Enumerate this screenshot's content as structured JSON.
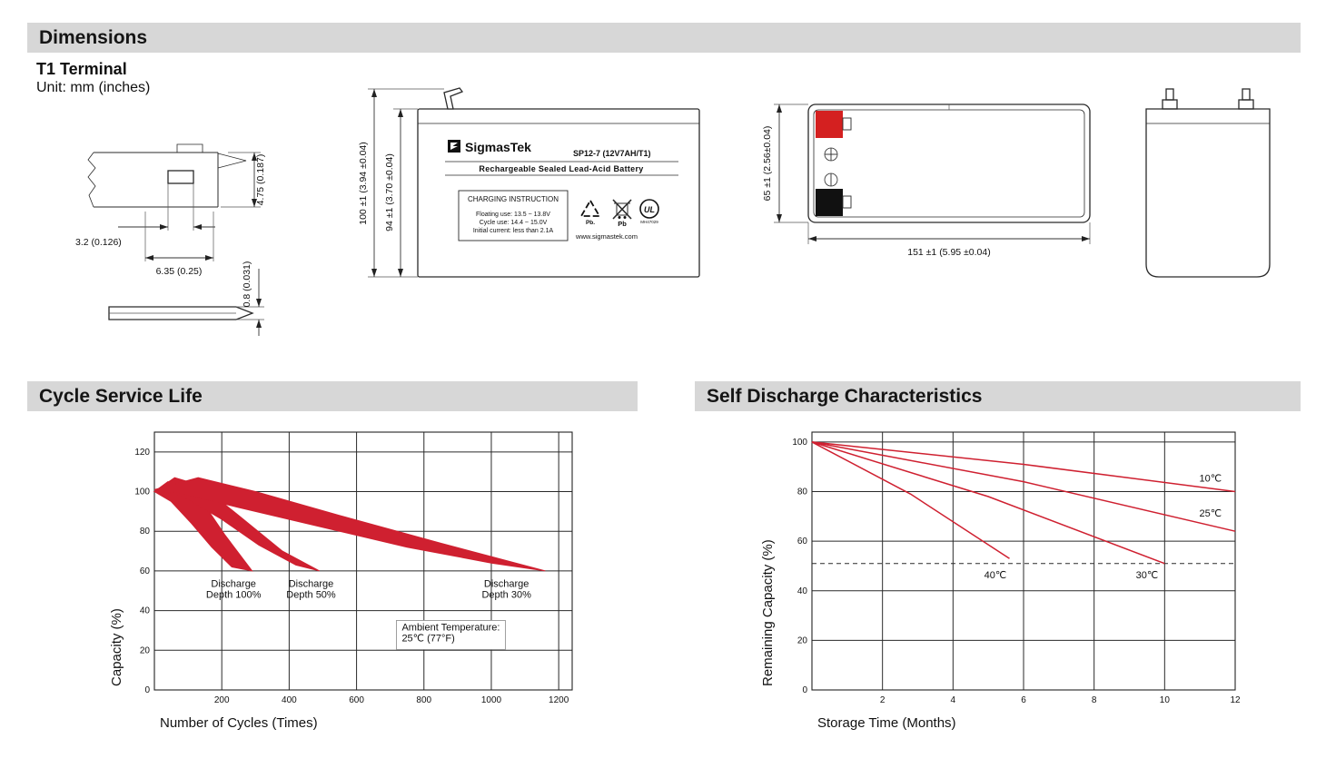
{
  "sections": {
    "dimensions": "Dimensions",
    "cycle_service_life": "Cycle Service Life",
    "self_discharge": "Self Discharge Characteristics"
  },
  "dimensions_section": {
    "terminal_type": "T1 Terminal",
    "unit_note": "Unit: mm (inches)",
    "terminal_detail": {
      "dim_height": "4.75 (0.187)",
      "dim_slot": "3.2 (0.126)",
      "dim_width": "6.35 (0.25)",
      "dim_thickness": "0.8 (0.031)"
    },
    "front_view": {
      "dim_total_height": "100 ±1 (3.94 ±0.04)",
      "dim_case_height": "94 ±1 (3.70 ±0.04)",
      "brand": "SigmasTek",
      "model": "SP12-7 (12V7AH/T1)",
      "product_type": "Rechargeable Sealed Lead-Acid Battery",
      "charging_title": "CHARGING INSTRUCTION",
      "charging_lines": [
        "Floating use: 13.5 ~ 13.8V",
        "Cycle use: 14.4 ~ 15.0V",
        "Initial current: less than 2.1A"
      ],
      "pb_recycle_label": "Pb.",
      "pb_disposal_label": "Pb",
      "ul_mark": "UL",
      "ul_code": "MH47029",
      "website": "www.sigmastek.com"
    },
    "top_view": {
      "dim_width": "65 ±1 (2.56±0.04)",
      "dim_length": "151 ±1 (5.95 ±0.04)"
    }
  },
  "chart_data": [
    {
      "type": "area",
      "title": "Cycle Service Life",
      "xlabel": "Number of Cycles (Times)",
      "ylabel": "Capacity (%)",
      "xlim": [
        0,
        1240
      ],
      "ylim": [
        0,
        130
      ],
      "xticks": [
        200,
        400,
        600,
        800,
        1000,
        1200
      ],
      "yticks": [
        0,
        20,
        40,
        60,
        80,
        100,
        120
      ],
      "grid": true,
      "legend_position": "none",
      "band_color": "#cf2030",
      "bands": [
        {
          "name": "Discharge Depth 100%",
          "polygon": [
            [
              0,
              100
            ],
            [
              40,
              105
            ],
            [
              90,
              104
            ],
            [
              150,
              93
            ],
            [
              210,
              78
            ],
            [
              290,
              60
            ],
            [
              230,
              62
            ],
            [
              170,
              72
            ],
            [
              110,
              84
            ],
            [
              50,
              95
            ],
            [
              10,
              99
            ]
          ]
        },
        {
          "name": "Discharge Depth 50%",
          "polygon": [
            [
              0,
              100
            ],
            [
              60,
              107
            ],
            [
              140,
              103
            ],
            [
              250,
              88
            ],
            [
              380,
              70
            ],
            [
              490,
              60
            ],
            [
              420,
              63
            ],
            [
              310,
              73
            ],
            [
              200,
              86
            ],
            [
              90,
              97
            ],
            [
              20,
              100
            ]
          ]
        },
        {
          "name": "Discharge Depth 30%",
          "polygon": [
            [
              0,
              101
            ],
            [
              130,
              107
            ],
            [
              300,
              100
            ],
            [
              550,
              88
            ],
            [
              850,
              74
            ],
            [
              1160,
              60
            ],
            [
              1000,
              64
            ],
            [
              750,
              72
            ],
            [
              500,
              82
            ],
            [
              250,
              92
            ],
            [
              80,
              99
            ]
          ]
        }
      ],
      "annotations": [
        {
          "lines": [
            "Discharge",
            "Depth 100%"
          ],
          "x": 235,
          "y": 52,
          "box": false
        },
        {
          "lines": [
            "Discharge",
            "Depth 50%"
          ],
          "x": 465,
          "y": 52,
          "box": false
        },
        {
          "lines": [
            "Discharge",
            "Depth 30%"
          ],
          "x": 1045,
          "y": 52,
          "box": false
        },
        {
          "lines": [
            "Ambient Temperature:",
            "25℃ (77°F)"
          ],
          "x": 880,
          "y": 30,
          "box": true
        }
      ]
    },
    {
      "type": "line",
      "title": "Self Discharge Characteristics",
      "xlabel": "Storage Time (Months)",
      "ylabel": "Remaining Capacity (%)",
      "xlim": [
        0,
        12
      ],
      "ylim": [
        0,
        104
      ],
      "xticks": [
        2,
        4,
        6,
        8,
        10,
        12
      ],
      "yticks": [
        0,
        20,
        40,
        60,
        80,
        100
      ],
      "grid": true,
      "legend_position": "inline-right",
      "line_color": "#cf2030",
      "series": [
        {
          "name": "10℃",
          "points": [
            [
              0,
              100
            ],
            [
              6,
              91
            ],
            [
              12,
              80
            ]
          ],
          "label_at": [
            11.3,
            84
          ]
        },
        {
          "name": "25℃",
          "points": [
            [
              0,
              100
            ],
            [
              6,
              84
            ],
            [
              12,
              64
            ]
          ],
          "label_at": [
            11.3,
            70
          ]
        },
        {
          "name": "30℃",
          "points": [
            [
              0,
              100
            ],
            [
              5,
              78
            ],
            [
              10,
              51
            ]
          ],
          "label_at": [
            9.5,
            45
          ]
        },
        {
          "name": "40℃",
          "points": [
            [
              0,
              100
            ],
            [
              2.8,
              79
            ],
            [
              5.6,
              53
            ]
          ],
          "label_at": [
            5.2,
            45
          ]
        }
      ],
      "dashed_line_y": 51
    }
  ]
}
